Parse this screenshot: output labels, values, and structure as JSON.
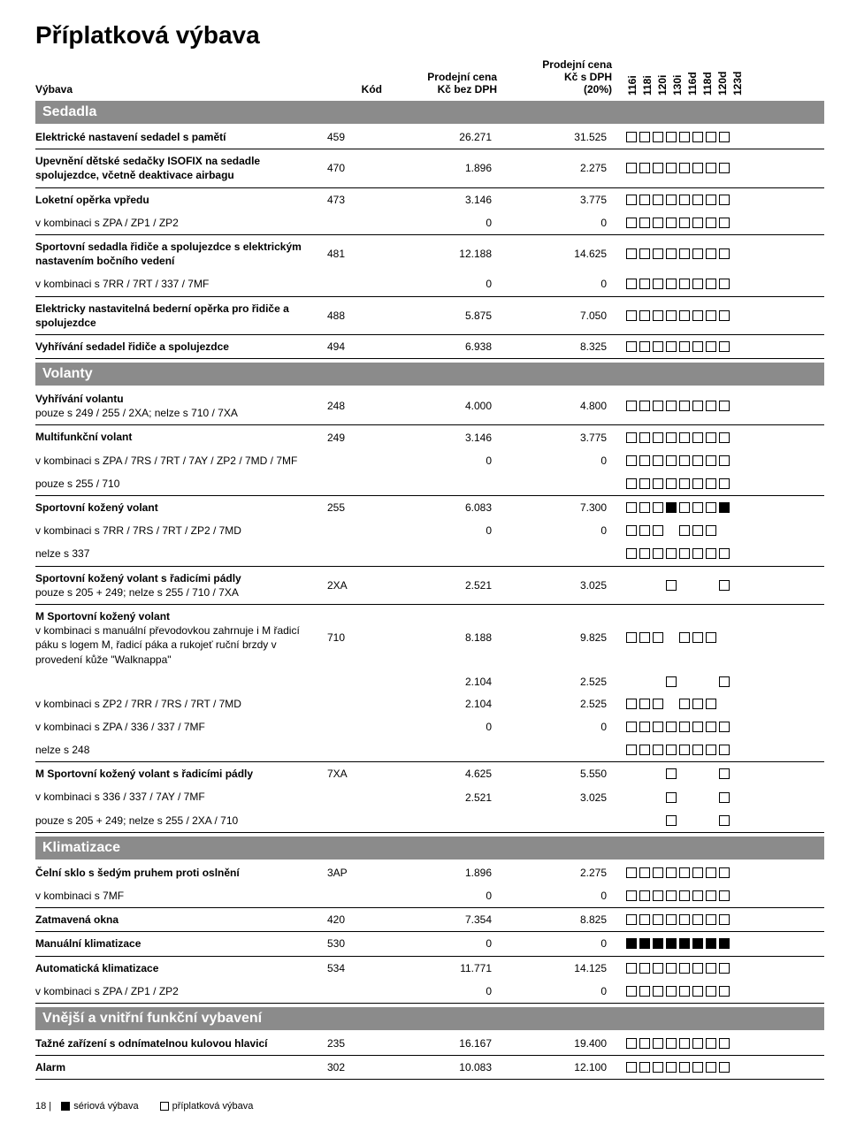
{
  "title": "Příplatková výbava",
  "columns": {
    "vybava": "Výbava",
    "kod": "Kód",
    "p1": "Prodejní cena\nKč bez DPH",
    "p2": "Prodejní cena\nKč s DPH\n(20%)"
  },
  "models": [
    "116i",
    "118i",
    "120i",
    "130i",
    "116d",
    "118d",
    "120d",
    "123d"
  ],
  "sections": [
    {
      "title": "Sedadla",
      "rows": [
        {
          "desc": "Elektrické nastavení sedadel s pamětí",
          "kod": "459",
          "p1": "26.271",
          "p2": "31.525",
          "b": "oooooooo",
          "bold": 1
        },
        {
          "desc": "Upevnění dětské sedačky ISOFIX na sedadle spolujezdce, včetně deaktivace airbagu",
          "kod": "470",
          "p1": "1.896",
          "p2": "2.275",
          "b": "oooooooo",
          "bold": 1
        },
        {
          "desc": "Loketní opěrka vpředu",
          "kod": "473",
          "p1": "3.146",
          "p2": "3.775",
          "b": "oooooooo",
          "bold": 1,
          "nb": 1
        },
        {
          "desc": "v kombinaci s ZPA / ZP1 / ZP2",
          "kod": "",
          "p1": "0",
          "p2": "0",
          "b": "oooooooo"
        },
        {
          "desc": "Sportovní sedadla řidiče a spolujezdce s elektrickým nastavením bočního vedení",
          "kod": "481",
          "p1": "12.188",
          "p2": "14.625",
          "b": "oooooooo",
          "bold": 1,
          "nb": 1
        },
        {
          "desc": "v kombinaci s 7RR / 7RT / 337 / 7MF",
          "kod": "",
          "p1": "0",
          "p2": "0",
          "b": "oooooooo"
        },
        {
          "desc": "Elektricky nastavitelná bederní opěrka pro řidiče a spolujezdce",
          "kod": "488",
          "p1": "5.875",
          "p2": "7.050",
          "b": "oooooooo",
          "bold": 1
        },
        {
          "desc": "Vyhřívání sedadel řidiče a spolujezdce",
          "kod": "494",
          "p1": "6.938",
          "p2": "8.325",
          "b": "oooooooo",
          "bold": 1
        }
      ]
    },
    {
      "title": "Volanty",
      "rows": [
        {
          "desc": "Vyhřívání volantu",
          "sub": "pouze s 249 / 255 / 2XA; nelze s 710 / 7XA",
          "kod": "248",
          "p1": "4.000",
          "p2": "4.800",
          "b": "oooooooo",
          "bold": 1
        },
        {
          "desc": "Multifunkční volant",
          "kod": "249",
          "p1": "3.146",
          "p2": "3.775",
          "b": "oooooooo",
          "bold": 1,
          "nb": 1
        },
        {
          "desc": "v kombinaci s ZPA / 7RS / 7RT / 7AY / ZP2 / 7MD / 7MF",
          "kod": "",
          "p1": "0",
          "p2": "0",
          "b": "oooooooo",
          "nb": 1
        },
        {
          "desc": "pouze s 255 / 710",
          "kod": "",
          "p1": "",
          "p2": "",
          "b": "oooooooo"
        },
        {
          "desc": "Sportovní kožený volant",
          "kod": "255",
          "p1": "6.083",
          "p2": "7.300",
          "b": "ooofooof",
          "bold": 1,
          "nb": 1
        },
        {
          "desc": "v kombinaci s 7RR / 7RS / 7RT / ZP2 / 7MD",
          "kod": "",
          "p1": "0",
          "p2": "0",
          "b": "ooo_ooo_",
          "nb": 1
        },
        {
          "desc": "nelze s 337",
          "kod": "",
          "p1": "",
          "p2": "",
          "b": "oooooooo"
        },
        {
          "desc": "Sportovní kožený volant s řadicími pádly",
          "sub": "pouze s 205 + 249; nelze s 255 / 710 / 7XA",
          "kod": "2XA",
          "p1": "2.521",
          "p2": "3.025",
          "b": "___o___o",
          "bold": 1
        },
        {
          "desc": "M Sportovní kožený volant",
          "sub": "v kombinaci s manuální převodovkou zahrnuje i M řadicí páku s logem M, řadicí páka a rukojeť ruční brzdy v provedení kůže \"Walknappa\"",
          "kod": "710",
          "p1": "8.188",
          "p2": "9.825",
          "b": "ooo_ooo_",
          "bold": 1,
          "nb": 1
        },
        {
          "desc": "",
          "kod": "",
          "p1": "2.104",
          "p2": "2.525",
          "b": "___o___o",
          "nb": 1
        },
        {
          "desc": "v kombinaci s ZP2 / 7RR / 7RS / 7RT / 7MD",
          "kod": "",
          "p1": "2.104",
          "p2": "2.525",
          "b": "ooo_ooo_",
          "nb": 1
        },
        {
          "desc": "v kombinaci s ZPA / 336 / 337 / 7MF",
          "kod": "",
          "p1": "0",
          "p2": "0",
          "b": "oooooooo",
          "nb": 1
        },
        {
          "desc": "nelze s 248",
          "kod": "",
          "p1": "",
          "p2": "",
          "b": "oooooooo"
        },
        {
          "desc": "M Sportovní kožený volant s řadicími pádly",
          "kod": "7XA",
          "p1": "4.625",
          "p2": "5.550",
          "b": "___o___o",
          "bold": 1,
          "nb": 1
        },
        {
          "desc": "v kombinaci s 336 / 337 / 7AY / 7MF",
          "kod": "",
          "p1": "2.521",
          "p2": "3.025",
          "b": "___o___o",
          "nb": 1
        },
        {
          "desc": "pouze s 205 + 249; nelze s 255 / 2XA / 710",
          "kod": "",
          "p1": "",
          "p2": "",
          "b": "___o___o"
        }
      ]
    },
    {
      "title": "Klimatizace",
      "rows": [
        {
          "desc": "Čelní sklo s šedým pruhem proti oslnění",
          "kod": "3AP",
          "p1": "1.896",
          "p2": "2.275",
          "b": "oooooooo",
          "bold": 1,
          "nb": 1
        },
        {
          "desc": "v kombinaci s 7MF",
          "kod": "",
          "p1": "0",
          "p2": "0",
          "b": "oooooooo"
        },
        {
          "desc": "Zatmavená okna",
          "kod": "420",
          "p1": "7.354",
          "p2": "8.825",
          "b": "oooooooo",
          "bold": 1
        },
        {
          "desc": "Manuální klimatizace",
          "kod": "530",
          "p1": "0",
          "p2": "0",
          "b": "ffffffff",
          "bold": 1
        },
        {
          "desc": "Automatická klimatizace",
          "kod": "534",
          "p1": "11.771",
          "p2": "14.125",
          "b": "oooooooo",
          "bold": 1,
          "nb": 1
        },
        {
          "desc": "v kombinaci s ZPA / ZP1 / ZP2",
          "kod": "",
          "p1": "0",
          "p2": "0",
          "b": "oooooooo"
        }
      ]
    },
    {
      "title": "Vnější a vnitřní funkční vybavení",
      "rows": [
        {
          "desc": "Tažné zařízení s odnímatelnou kulovou hlavicí",
          "kod": "235",
          "p1": "16.167",
          "p2": "19.400",
          "b": "oooooooo",
          "bold": 1
        },
        {
          "desc": "Alarm",
          "kod": "302",
          "p1": "10.083",
          "p2": "12.100",
          "b": "oooooooo",
          "bold": 1
        }
      ]
    }
  ],
  "footer": {
    "page": "18 |",
    "legend1": "sériová výbava",
    "legend2": "příplatková výbava"
  }
}
